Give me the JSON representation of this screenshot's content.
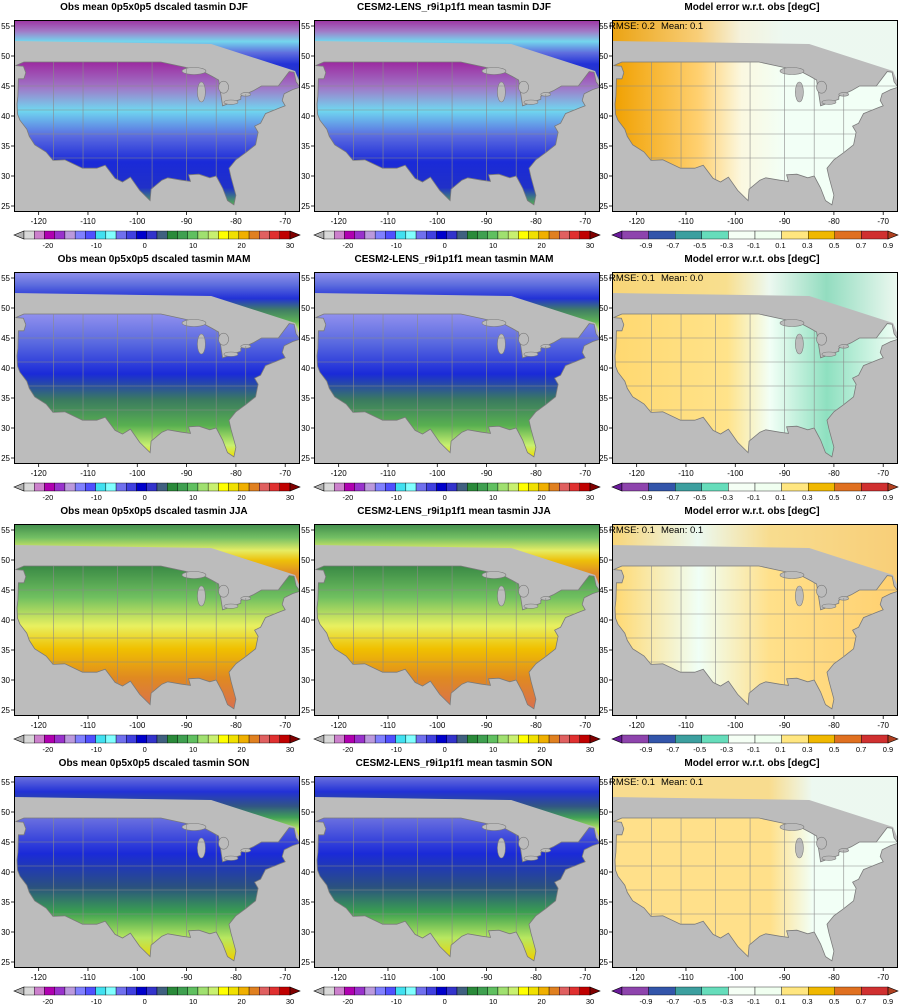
{
  "figure": {
    "x_ticks": [
      "-120",
      "-110",
      "-100",
      "-90",
      "-80",
      "-70"
    ],
    "y_ticks": [
      "25",
      "30",
      "35",
      "40",
      "45",
      "50",
      "55"
    ],
    "colorbars": {
      "temp": {
        "labels": [
          "-20",
          "-10",
          "0",
          "10",
          "20",
          "30"
        ],
        "colors": [
          "#b3b3b3",
          "#d8d8d8",
          "#cc80cc",
          "#b000b0",
          "#9932cc",
          "#bb99dd",
          "#8080ff",
          "#5050ff",
          "#40e0f0",
          "#80ffff",
          "#7070ee",
          "#4040e0",
          "#0000cc",
          "#3333cc",
          "#406080",
          "#2a8a3a",
          "#3fa050",
          "#60c060",
          "#a0e070",
          "#c8f070",
          "#ffff00",
          "#f0e000",
          "#f0b000",
          "#e08020",
          "#e06060",
          "#e03030",
          "#c00000",
          "#800000"
        ]
      },
      "diff": {
        "labels": [
          "-0.9",
          "-0.7",
          "-0.5",
          "-0.3",
          "-0.1",
          "0.1",
          "0.3",
          "0.5",
          "0.7",
          "0.9"
        ],
        "colors": [
          "#6a1b9a",
          "#8e44ad",
          "#3355aa",
          "#3c9f9f",
          "#66ddbb",
          "#f5fff5",
          "#f0fff0",
          "#ffe680",
          "#f0b800",
          "#e07020",
          "#d03030",
          "#b04020"
        ]
      }
    },
    "rows": [
      {
        "obs_title": "Obs mean 0p5x0p5 dscaled tasmin DJF",
        "model_title": "CESM2-LENS_r9i1p1f1 mean tasmin DJF",
        "diff_title": "Model error w.r.t. obs [degC]",
        "rmse": "RMSE: 0.2",
        "mean": "Mean: 0.1"
      },
      {
        "obs_title": "Obs mean 0p5x0p5 dscaled tasmin MAM",
        "model_title": "CESM2-LENS_r9i1p1f1 mean tasmin MAM",
        "diff_title": "Model error w.r.t. obs [degC]",
        "rmse": "RMSE: 0.1",
        "mean": "Mean: 0.0"
      },
      {
        "obs_title": "Obs mean 0p5x0p5 dscaled tasmin JJA",
        "model_title": "CESM2-LENS_r9i1p1f1 mean tasmin JJA",
        "diff_title": "Model error w.r.t. obs [degC]",
        "rmse": "RMSE: 0.1",
        "mean": "Mean: 0.1"
      },
      {
        "obs_title": "Obs mean 0p5x0p5 dscaled tasmin SON",
        "model_title": "CESM2-LENS_r9i1p1f1 mean tasmin SON",
        "diff_title": "Model error w.r.t. obs [degC]",
        "rmse": "RMSE: 0.1",
        "mean": "Mean: 0.1"
      }
    ]
  }
}
